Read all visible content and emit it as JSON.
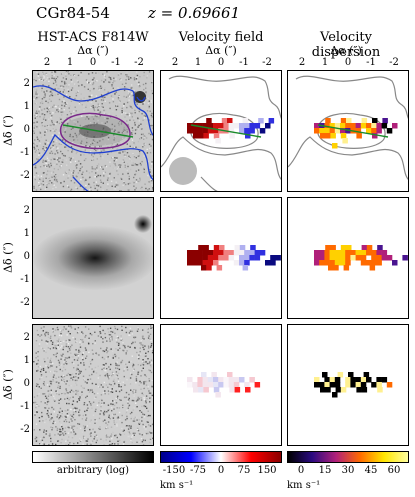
{
  "header": {
    "object": "CGr84-54",
    "redshift": "z = 0.69661"
  },
  "columns": [
    {
      "title": "HST-ACS F814W",
      "xlabel": "Δα (″)"
    },
    {
      "title": "Velocity field",
      "xlabel": "Δα (″)"
    },
    {
      "title": "Velocity dispersion",
      "xlabel": "Δα (″)"
    }
  ],
  "axes": {
    "ylabel": "Δδ (″)",
    "x_ticks": [
      "2",
      "1",
      "0",
      "-1",
      "-2"
    ],
    "y_ticks": [
      "2",
      "1",
      "0",
      "-1",
      "-2"
    ]
  },
  "colorbars": [
    {
      "label": "arbitrary (log)",
      "ticks": [],
      "colors": [
        "#ffffff",
        "#000000"
      ]
    },
    {
      "label": "km s⁻¹",
      "ticks": [
        "-150",
        "-75",
        "0",
        "75",
        "150"
      ],
      "colors": [
        "#00008b",
        "#0000ff",
        "#ffffff",
        "#ff0000",
        "#8b0000"
      ]
    },
    {
      "label": "km s⁻¹",
      "ticks": [
        "0",
        "15",
        "30",
        "45",
        "60"
      ],
      "colors": [
        "#000000",
        "#2a0a80",
        "#b0207a",
        "#ff6a00",
        "#ffe600",
        "#ffffa0"
      ]
    }
  ]
}
